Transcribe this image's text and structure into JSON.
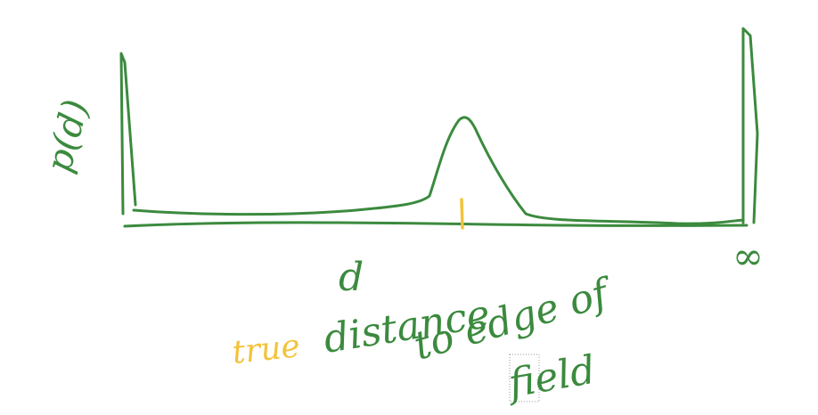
{
  "sketch": {
    "colors": {
      "green": "#3b8a3e",
      "yellow": "#f3c33c"
    },
    "labels": {
      "y_axis": "p(d)",
      "x_axis": "d",
      "infinity": "∞",
      "word_true": "true",
      "caption_line1": "distance",
      "caption_line2": "to edge of",
      "caption_line3": "field"
    }
  }
}
